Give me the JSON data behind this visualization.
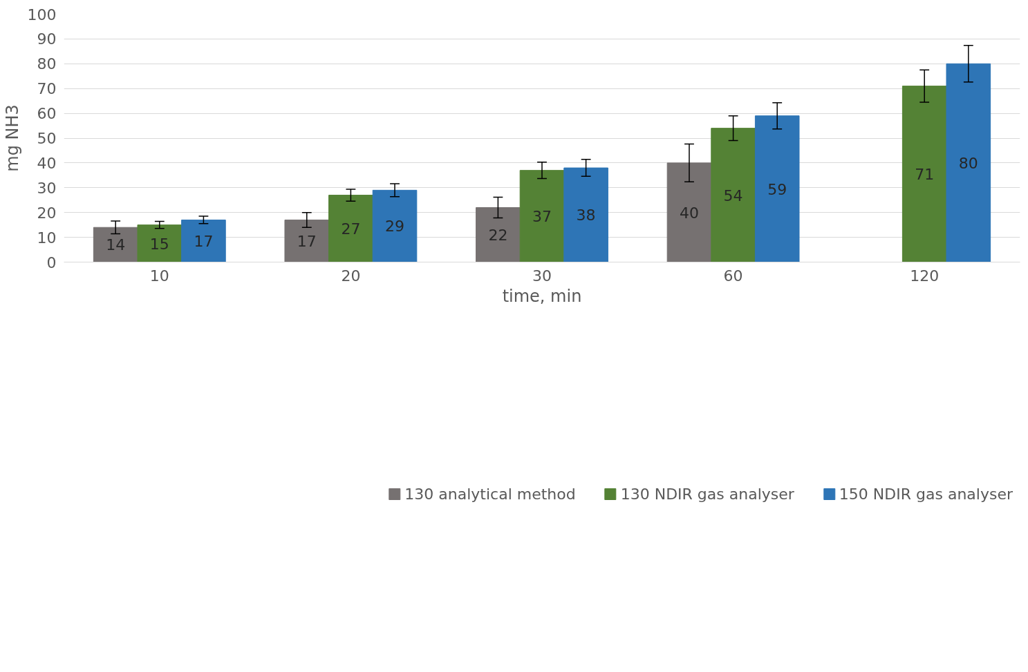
{
  "chart_data": {
    "type": "bar",
    "xlabel": "time, min",
    "ylabel": "mg NH3",
    "categories": [
      "10",
      "20",
      "30",
      "60",
      "120"
    ],
    "series": [
      {
        "name": "130 analytical method",
        "color": "#767171",
        "values": [
          14,
          17,
          22,
          40,
          null
        ],
        "errors": [
          2.6,
          3,
          4.2,
          7.6,
          null
        ]
      },
      {
        "name": "130 NDIR gas analyser",
        "color": "#548235",
        "values": [
          15,
          27,
          37,
          54,
          71
        ],
        "errors": [
          1.4,
          2.4,
          3.3,
          5,
          6.5
        ]
      },
      {
        "name": "150 NDIR gas analyser",
        "color": "#2e75b6",
        "values": [
          17,
          29,
          38,
          59,
          80
        ],
        "errors": [
          1.5,
          2.6,
          3.4,
          5.3,
          7.4
        ]
      }
    ],
    "ylim": [
      0,
      100
    ],
    "yticks": [
      0,
      10,
      20,
      30,
      40,
      50,
      60,
      70,
      80,
      90,
      100
    ],
    "grid": "y",
    "legend": "bottom",
    "data_labels": true
  }
}
